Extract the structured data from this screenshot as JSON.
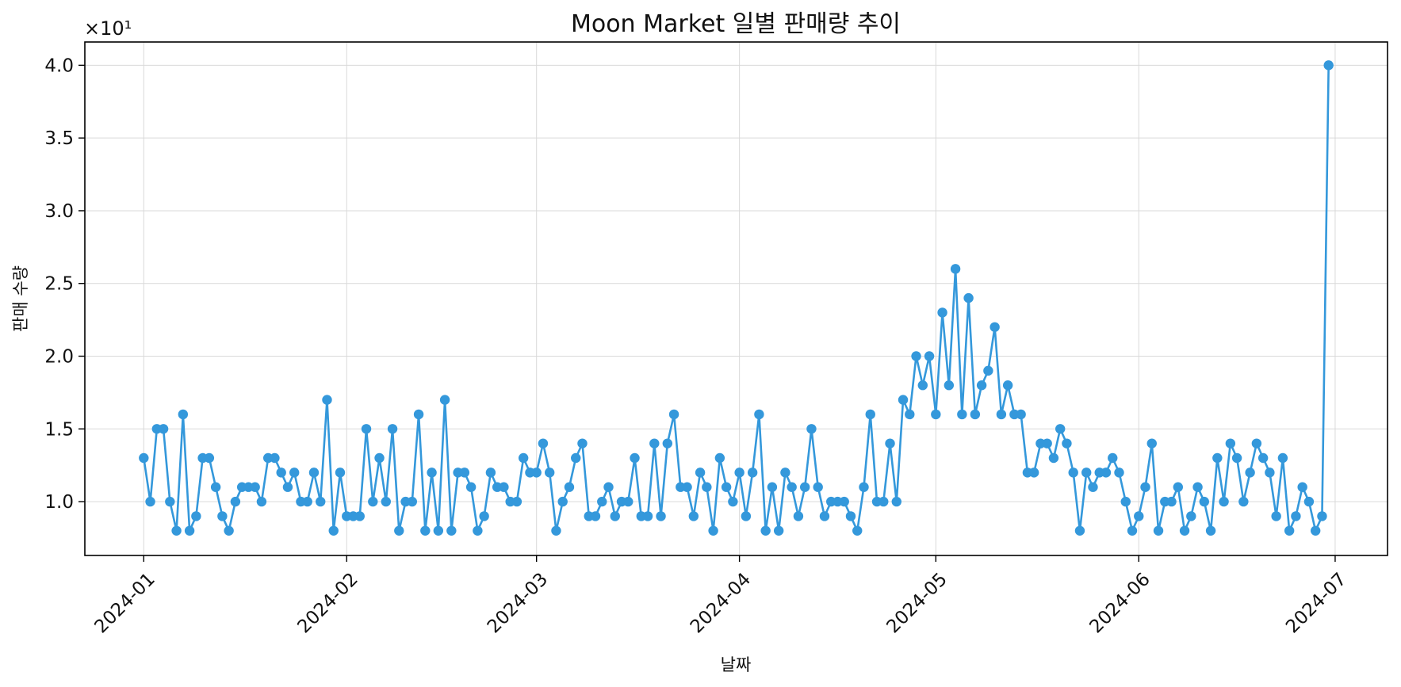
{
  "chart_data": {
    "type": "line",
    "title": "Moon Market 일별 판매량 추이",
    "xlabel": "날짜",
    "ylabel": "판매 수량",
    "y_offset_label": "×10¹",
    "y_scale_factor": 10,
    "grid": true,
    "series_color": "#3498db",
    "xlim": [
      "2023-12-23",
      "2024-07-09"
    ],
    "ylim": [
      0.63,
      4.16
    ],
    "x_ticks": [
      {
        "date": "2024-01-01",
        "label": "2024-01"
      },
      {
        "date": "2024-02-01",
        "label": "2024-02"
      },
      {
        "date": "2024-03-01",
        "label": "2024-03"
      },
      {
        "date": "2024-04-01",
        "label": "2024-04"
      },
      {
        "date": "2024-05-01",
        "label": "2024-05"
      },
      {
        "date": "2024-06-01",
        "label": "2024-06"
      },
      {
        "date": "2024-07-01",
        "label": "2024-07"
      }
    ],
    "y_ticks": [
      {
        "value": 1.0,
        "label": "1.0"
      },
      {
        "value": 1.5,
        "label": "1.5"
      },
      {
        "value": 2.0,
        "label": "2.0"
      },
      {
        "value": 2.5,
        "label": "2.5"
      },
      {
        "value": 3.0,
        "label": "3.0"
      },
      {
        "value": 3.5,
        "label": "3.5"
      },
      {
        "value": 4.0,
        "label": "4.0"
      }
    ],
    "start_date": "2024-01-01",
    "values": [
      13,
      10,
      15,
      15,
      10,
      8,
      16,
      8,
      9,
      13,
      13,
      11,
      9,
      8,
      10,
      11,
      11,
      11,
      10,
      13,
      13,
      12,
      11,
      12,
      10,
      10,
      12,
      10,
      17,
      8,
      12,
      9,
      9,
      9,
      15,
      10,
      13,
      10,
      15,
      8,
      10,
      10,
      16,
      8,
      12,
      8,
      17,
      8,
      12,
      12,
      11,
      8,
      9,
      12,
      11,
      11,
      10,
      10,
      13,
      12,
      12,
      14,
      12,
      8,
      10,
      11,
      13,
      14,
      9,
      9,
      10,
      11,
      9,
      10,
      10,
      13,
      9,
      9,
      14,
      9,
      14,
      16,
      11,
      11,
      9,
      12,
      11,
      8,
      13,
      11,
      10,
      12,
      9,
      12,
      16,
      8,
      11,
      8,
      12,
      11,
      9,
      11,
      15,
      11,
      9,
      10,
      10,
      10,
      9,
      8,
      11,
      16,
      10,
      10,
      14,
      10,
      17,
      16,
      20,
      18,
      20,
      16,
      23,
      18,
      26,
      16,
      24,
      16,
      18,
      19,
      22,
      16,
      18,
      16,
      16,
      12,
      12,
      14,
      14,
      13,
      15,
      14,
      12,
      8,
      12,
      11,
      12,
      12,
      13,
      12,
      10,
      8,
      9,
      11,
      14,
      8,
      10,
      10,
      11,
      8,
      9,
      11,
      10,
      8,
      13,
      10,
      14,
      13,
      10,
      12,
      14,
      13,
      12,
      9,
      13,
      8,
      9,
      11,
      10,
      8,
      9,
      40
    ]
  }
}
